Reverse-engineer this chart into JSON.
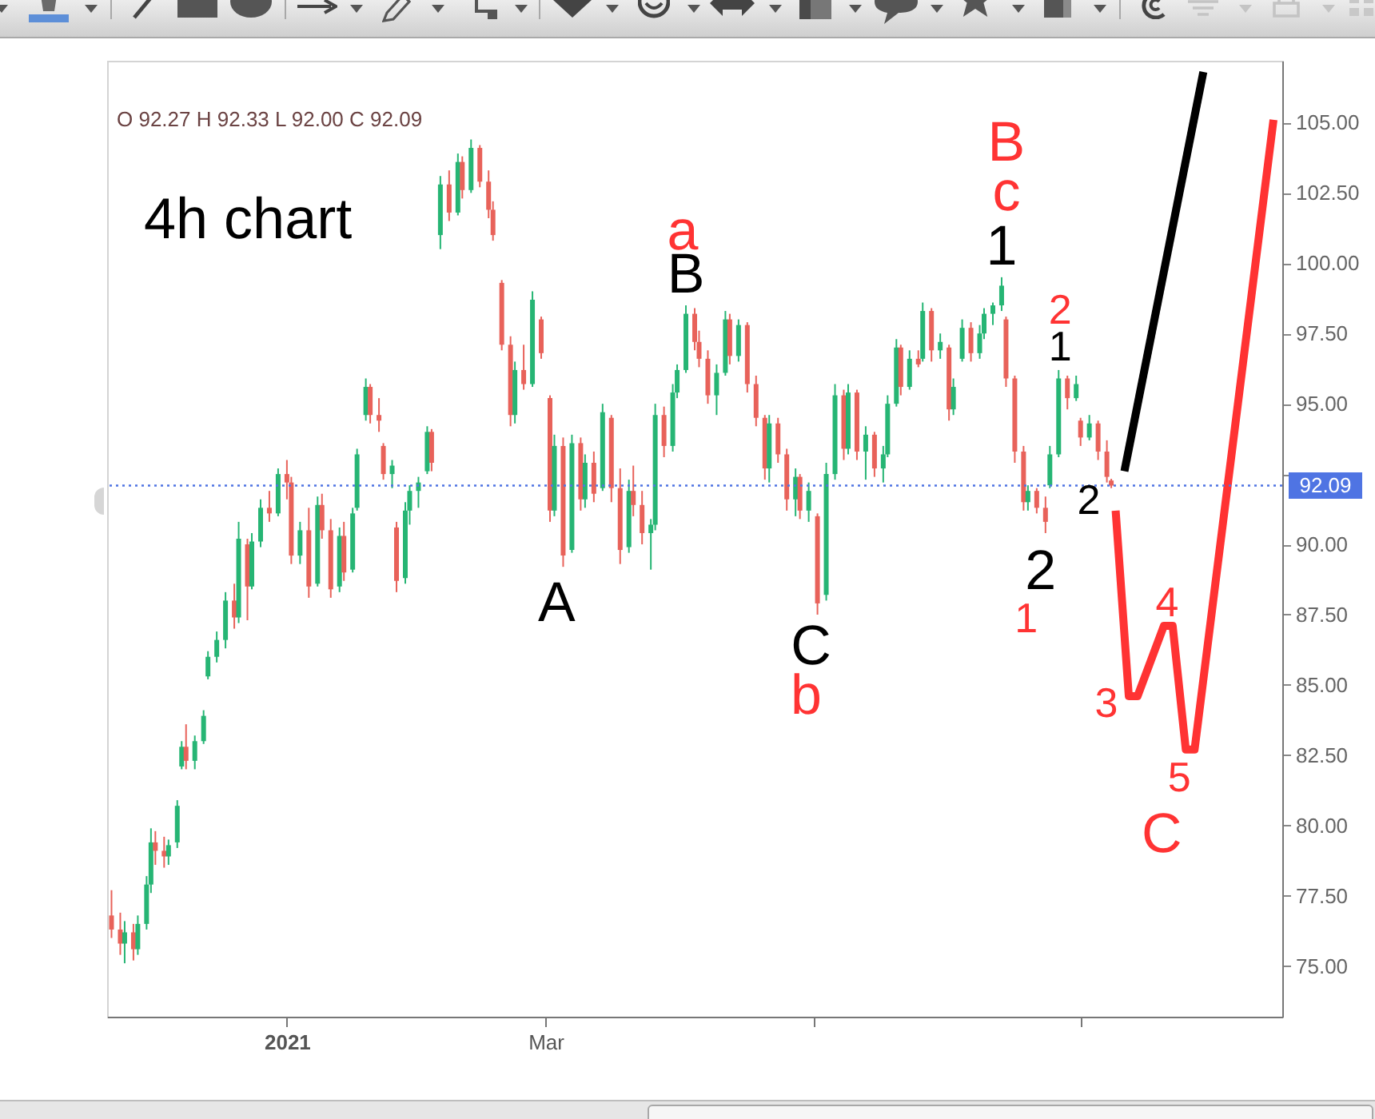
{
  "chart_data": {
    "type": "candlestick",
    "title": "4h chart",
    "subtitle": "O 92.27 H 92.33 L 92.00 C 92.09",
    "x": [
      "2020-11-22",
      "2020-11-24",
      "2020-11-25",
      "2020-11-27",
      "2020-11-28",
      "2020-11-30",
      "2020-12-01",
      "2020-12-02",
      "2020-12-04",
      "2020-12-05",
      "2020-12-07",
      "2020-12-08",
      "2020-12-09",
      "2020-12-11",
      "2020-12-13",
      "2020-12-14",
      "2020-12-16",
      "2020-12-18",
      "2020-12-20",
      "2020-12-21",
      "2020-12-23",
      "2020-12-24",
      "2020-12-26",
      "2020-12-28",
      "2020-12-30",
      "2021-01-01",
      "2021-01-02",
      "2021-01-04",
      "2021-01-06",
      "2021-01-08",
      "2021-01-09",
      "2021-01-11",
      "2021-01-13",
      "2021-01-14",
      "2021-01-16",
      "2021-01-17",
      "2021-01-19",
      "2021-01-20",
      "2021-01-22",
      "2021-01-23",
      "2021-01-25",
      "2021-01-26",
      "2021-01-28",
      "2021-01-29",
      "2021-01-31",
      "2021-02-02",
      "2021-02-03",
      "2021-02-05",
      "2021-02-07",
      "2021-02-09",
      "2021-02-10",
      "2021-02-12",
      "2021-02-14",
      "2021-02-16",
      "2021-02-17",
      "2021-02-19",
      "2021-02-21",
      "2021-02-22",
      "2021-02-24",
      "2021-02-26",
      "2021-02-28",
      "2021-03-02",
      "2021-03-03",
      "2021-03-05",
      "2021-03-07",
      "2021-03-09",
      "2021-03-10",
      "2021-03-12",
      "2021-03-14",
      "2021-03-16",
      "2021-03-18",
      "2021-03-20",
      "2021-03-21",
      "2021-03-23",
      "2021-03-25",
      "2021-03-26",
      "2021-03-28",
      "2021-03-30",
      "2021-03-31",
      "2021-04-02",
      "2021-04-04",
      "2021-04-05",
      "2021-04-07",
      "2021-04-09",
      "2021-04-11",
      "2021-04-12",
      "2021-04-14",
      "2021-04-16",
      "2021-04-18",
      "2021-04-20",
      "2021-04-21",
      "2021-04-23",
      "2021-04-25",
      "2021-04-27",
      "2021-04-28",
      "2021-04-30",
      "2021-05-02",
      "2021-05-04",
      "2021-05-06",
      "2021-05-08",
      "2021-05-09",
      "2021-05-11",
      "2021-05-13",
      "2021-05-15",
      "2021-05-17",
      "2021-05-18",
      "2021-05-20",
      "2021-05-21",
      "2021-05-23",
      "2021-05-25",
      "2021-05-26",
      "2021-05-28",
      "2021-05-30",
      "2021-06-01",
      "2021-06-02",
      "2021-06-04",
      "2021-06-06",
      "2021-06-08",
      "2021-06-09",
      "2021-06-11",
      "2021-06-13",
      "2021-06-14",
      "2021-06-16",
      "2021-06-18",
      "2021-06-19",
      "2021-06-21",
      "2021-06-23",
      "2021-06-24",
      "2021-06-26",
      "2021-06-28",
      "2021-06-30",
      "2021-07-01",
      "2021-07-03",
      "2021-07-05",
      "2021-07-07",
      "2021-07-08"
    ],
    "ohlc": [
      [
        76.8,
        77.7,
        76.0,
        76.3
      ],
      [
        76.3,
        76.9,
        75.4,
        75.8
      ],
      [
        75.8,
        76.6,
        75.1,
        76.2
      ],
      [
        76.2,
        76.5,
        75.2,
        75.6
      ],
      [
        75.6,
        76.8,
        75.4,
        76.5
      ],
      [
        76.5,
        78.2,
        76.3,
        77.9
      ],
      [
        77.9,
        79.9,
        77.6,
        79.4
      ],
      [
        79.4,
        79.8,
        78.6,
        79.1
      ],
      [
        79.1,
        79.6,
        78.5,
        78.9
      ],
      [
        78.9,
        79.5,
        78.6,
        79.3
      ],
      [
        79.4,
        80.9,
        79.2,
        80.7
      ],
      [
        82.1,
        83.0,
        82.0,
        82.8
      ],
      [
        82.8,
        83.6,
        82.0,
        82.3
      ],
      [
        82.3,
        83.2,
        82.0,
        83.0
      ],
      [
        83.0,
        84.1,
        82.9,
        83.9
      ],
      [
        85.3,
        86.2,
        85.2,
        86.0
      ],
      [
        86.0,
        86.9,
        85.8,
        86.6
      ],
      [
        86.6,
        88.3,
        86.3,
        88.0
      ],
      [
        88.0,
        88.6,
        87.0,
        87.4
      ],
      [
        87.4,
        90.8,
        87.2,
        90.2
      ],
      [
        90.0,
        90.2,
        87.3,
        88.5
      ],
      [
        88.5,
        90.4,
        88.4,
        90.1
      ],
      [
        90.1,
        91.6,
        89.9,
        91.3
      ],
      [
        91.3,
        91.9,
        90.8,
        91.1
      ],
      [
        91.1,
        92.7,
        91.0,
        92.5
      ],
      [
        92.5,
        93.0,
        91.6,
        92.2
      ],
      [
        92.2,
        92.4,
        89.3,
        89.6
      ],
      [
        89.6,
        90.8,
        89.3,
        90.5
      ],
      [
        90.5,
        91.3,
        88.1,
        88.5
      ],
      [
        88.6,
        91.7,
        88.5,
        91.4
      ],
      [
        91.4,
        91.8,
        90.2,
        90.5
      ],
      [
        90.5,
        90.9,
        88.1,
        88.4
      ],
      [
        88.5,
        90.6,
        88.3,
        90.3
      ],
      [
        90.3,
        90.8,
        88.7,
        89.0
      ],
      [
        89.1,
        91.3,
        89.0,
        91.1
      ],
      [
        91.3,
        93.4,
        91.2,
        93.2
      ],
      [
        94.6,
        95.9,
        94.4,
        95.6
      ],
      [
        95.6,
        95.7,
        94.3,
        94.6
      ],
      [
        94.6,
        95.2,
        94.0,
        94.4
      ],
      [
        93.5,
        93.6,
        92.3,
        92.5
      ],
      [
        92.5,
        93.0,
        92.0,
        92.8
      ],
      [
        90.6,
        90.8,
        88.3,
        88.7
      ],
      [
        88.8,
        91.5,
        88.6,
        91.2
      ],
      [
        91.2,
        92.1,
        90.7,
        91.9
      ],
      [
        91.9,
        92.4,
        91.3,
        92.2
      ],
      [
        92.6,
        94.2,
        92.5,
        94.0
      ],
      [
        94.0,
        94.1,
        92.6,
        92.9
      ],
      [
        101.0,
        103.1,
        100.5,
        102.8
      ],
      [
        102.8,
        103.3,
        101.5,
        101.8
      ],
      [
        101.8,
        103.9,
        101.7,
        103.6
      ],
      [
        103.6,
        103.8,
        102.3,
        102.6
      ],
      [
        102.6,
        104.4,
        102.5,
        104.1
      ],
      [
        104.1,
        104.2,
        102.7,
        102.9
      ],
      [
        102.9,
        103.3,
        101.6,
        101.9
      ],
      [
        101.9,
        102.2,
        100.8,
        101.0
      ],
      [
        99.3,
        99.4,
        96.9,
        97.1
      ],
      [
        97.1,
        97.4,
        94.2,
        94.6
      ],
      [
        94.6,
        96.5,
        94.3,
        96.2
      ],
      [
        96.2,
        97.1,
        95.5,
        95.7
      ],
      [
        95.7,
        99.0,
        95.6,
        98.7
      ],
      [
        98.0,
        98.1,
        96.6,
        96.8
      ],
      [
        95.2,
        95.3,
        90.8,
        91.2
      ],
      [
        91.2,
        93.9,
        91.0,
        93.5
      ],
      [
        93.5,
        93.8,
        89.2,
        89.6
      ],
      [
        89.8,
        93.9,
        89.7,
        93.6
      ],
      [
        93.6,
        93.8,
        91.2,
        91.6
      ],
      [
        91.6,
        93.2,
        91.3,
        92.9
      ],
      [
        92.9,
        93.3,
        91.5,
        91.8
      ],
      [
        92.0,
        95.0,
        91.9,
        94.7
      ],
      [
        94.5,
        94.6,
        91.5,
        92.0
      ],
      [
        92.0,
        92.7,
        89.3,
        89.8
      ],
      [
        89.9,
        92.3,
        89.7,
        91.9
      ],
      [
        91.9,
        92.8,
        91.0,
        91.4
      ],
      [
        91.4,
        91.9,
        90.0,
        90.4
      ],
      [
        90.4,
        90.9,
        89.1,
        90.7
      ],
      [
        90.7,
        95.0,
        90.5,
        94.6
      ],
      [
        94.6,
        94.9,
        93.1,
        93.5
      ],
      [
        93.5,
        95.7,
        93.3,
        95.4
      ],
      [
        95.4,
        96.4,
        95.2,
        96.2
      ],
      [
        96.2,
        98.5,
        96.1,
        98.2
      ],
      [
        98.2,
        98.4,
        96.9,
        97.2
      ],
      [
        97.2,
        97.6,
        96.3,
        96.6
      ],
      [
        96.6,
        96.9,
        95.0,
        95.3
      ],
      [
        95.3,
        96.4,
        94.6,
        96.1
      ],
      [
        96.1,
        98.3,
        96.0,
        98.0
      ],
      [
        98.0,
        98.2,
        96.4,
        96.7
      ],
      [
        96.7,
        98.0,
        96.5,
        97.8
      ],
      [
        97.8,
        97.9,
        95.4,
        95.7
      ],
      [
        95.7,
        96.0,
        94.2,
        94.5
      ],
      [
        94.5,
        94.6,
        92.3,
        92.7
      ],
      [
        92.7,
        94.6,
        92.2,
        94.3
      ],
      [
        94.3,
        94.5,
        92.9,
        93.2
      ],
      [
        93.2,
        93.4,
        91.2,
        91.6
      ],
      [
        91.6,
        92.7,
        91.0,
        92.4
      ],
      [
        92.4,
        92.5,
        90.9,
        91.2
      ],
      [
        91.2,
        92.2,
        90.8,
        91.9
      ],
      [
        91.0,
        91.1,
        87.5,
        87.9
      ],
      [
        88.2,
        92.9,
        88.0,
        92.5
      ],
      [
        92.5,
        95.7,
        92.3,
        95.3
      ],
      [
        95.3,
        95.5,
        93.0,
        93.4
      ],
      [
        93.4,
        95.7,
        93.2,
        95.4
      ],
      [
        95.4,
        95.5,
        93.0,
        93.3
      ],
      [
        93.3,
        94.2,
        92.3,
        93.9
      ],
      [
        93.9,
        94.0,
        92.4,
        92.7
      ],
      [
        92.7,
        93.5,
        92.2,
        93.2
      ],
      [
        93.2,
        95.3,
        93.1,
        95.0
      ],
      [
        95.0,
        97.3,
        94.9,
        97.0
      ],
      [
        97.0,
        97.1,
        95.3,
        95.6
      ],
      [
        95.6,
        96.9,
        95.5,
        96.6
      ],
      [
        96.6,
        96.9,
        96.3,
        96.4
      ],
      [
        96.6,
        98.6,
        96.5,
        98.3
      ],
      [
        98.3,
        98.4,
        96.5,
        96.9
      ],
      [
        96.9,
        97.5,
        96.6,
        97.2
      ],
      [
        97.0,
        97.1,
        94.4,
        94.8
      ],
      [
        94.8,
        95.9,
        94.6,
        95.6
      ],
      [
        96.6,
        98.0,
        96.5,
        97.7
      ],
      [
        97.7,
        97.9,
        96.5,
        96.8
      ],
      [
        96.8,
        97.8,
        96.6,
        97.5
      ],
      [
        97.5,
        98.4,
        97.3,
        98.2
      ],
      [
        98.2,
        98.6,
        97.8,
        98.5
      ],
      [
        98.5,
        99.5,
        98.3,
        99.2
      ],
      [
        98.0,
        98.1,
        95.6,
        95.9
      ],
      [
        95.9,
        96.0,
        92.9,
        93.3
      ],
      [
        93.3,
        93.5,
        91.2,
        91.5
      ],
      [
        91.5,
        92.1,
        91.2,
        91.9
      ],
      [
        91.9,
        92.0,
        91.1,
        91.3
      ],
      [
        91.3,
        91.7,
        90.4,
        90.8
      ],
      [
        92.1,
        93.5,
        92.0,
        93.2
      ],
      [
        93.2,
        96.2,
        93.1,
        95.9
      ],
      [
        95.9,
        96.0,
        94.8,
        95.2
      ],
      [
        95.2,
        96.0,
        95.1,
        95.7
      ],
      [
        94.4,
        94.5,
        93.5,
        93.8
      ],
      [
        93.8,
        94.6,
        93.7,
        94.3
      ],
      [
        94.3,
        94.4,
        93.0,
        93.3
      ],
      [
        93.3,
        93.7,
        92.2,
        92.4
      ],
      [
        92.27,
        92.33,
        92.0,
        92.09
      ]
    ],
    "colors": [
      "#e8625a",
      "#e8625a",
      "#26b574",
      "#e8625a",
      "#26b574",
      "#26b574",
      "#26b574",
      "#e8625a",
      "#e8625a",
      "#26b574",
      "#26b574",
      "#26b574",
      "#e8625a",
      "#26b574",
      "#26b574",
      "#26b574",
      "#26b574",
      "#26b574",
      "#e8625a",
      "#26b574",
      "#e8625a",
      "#26b574",
      "#26b574",
      "#e8625a",
      "#26b574",
      "#e8625a",
      "#e8625a",
      "#26b574",
      "#e8625a",
      "#26b574",
      "#e8625a",
      "#e8625a",
      "#26b574",
      "#e8625a",
      "#26b574",
      "#26b574",
      "#26b574",
      "#e8625a",
      "#e8625a",
      "#e8625a",
      "#26b574",
      "#e8625a",
      "#26b574",
      "#26b574",
      "#26b574",
      "#26b574",
      "#e8625a",
      "#26b574",
      "#e8625a",
      "#26b574",
      "#e8625a",
      "#26b574",
      "#e8625a",
      "#e8625a",
      "#e8625a",
      "#e8625a",
      "#e8625a",
      "#26b574",
      "#e8625a",
      "#26b574",
      "#e8625a",
      "#e8625a",
      "#26b574",
      "#e8625a",
      "#26b574",
      "#e8625a",
      "#26b574",
      "#e8625a",
      "#26b574",
      "#e8625a",
      "#e8625a",
      "#26b574",
      "#e8625a",
      "#e8625a",
      "#26b574",
      "#26b574",
      "#e8625a",
      "#26b574",
      "#26b574",
      "#26b574",
      "#e8625a",
      "#e8625a",
      "#e8625a",
      "#26b574",
      "#26b574",
      "#e8625a",
      "#26b574",
      "#e8625a",
      "#e8625a",
      "#e8625a",
      "#26b574",
      "#e8625a",
      "#e8625a",
      "#26b574",
      "#e8625a",
      "#26b574",
      "#e8625a",
      "#26b574",
      "#26b574",
      "#e8625a",
      "#26b574",
      "#e8625a",
      "#26b574",
      "#e8625a",
      "#26b574",
      "#26b574",
      "#26b574",
      "#e8625a",
      "#26b574",
      "#e8625a",
      "#26b574",
      "#e8625a",
      "#26b574",
      "#e8625a",
      "#26b574",
      "#26b574",
      "#e8625a",
      "#26b574",
      "#26b574",
      "#26b574",
      "#26b574",
      "#e8625a",
      "#e8625a",
      "#e8625a",
      "#26b574",
      "#e8625a",
      "#e8625a",
      "#26b574",
      "#26b574",
      "#e8625a",
      "#26b574",
      "#e8625a",
      "#26b574",
      "#e8625a",
      "#e8625a",
      "#e8625a"
    ],
    "series": [
      {
        "type": "line",
        "color": "#000000",
        "x": [
          "2021-07-11",
          "2021-07-29"
        ],
        "values": [
          92.6,
          106.8
        ]
      },
      {
        "type": "line",
        "color": "#ff3333",
        "x": [
          "2021-07-09",
          "2021-07-12",
          "2021-07-14",
          "2021-07-20",
          "2021-07-22",
          "2021-07-25",
          "2021-07-27",
          "2021-08-14"
        ],
        "values": [
          91.2,
          84.6,
          84.6,
          87.1,
          87.1,
          82.7,
          82.7,
          105.1
        ]
      }
    ],
    "xlim": [
      "2020-11-21",
      "2021-08-16"
    ],
    "xticks": [
      {
        "value": "2021-01-01",
        "label": "2021"
      },
      {
        "value": "2021-03-01",
        "label": "Mar"
      },
      {
        "value": "2021-05-01",
        "label": null
      },
      {
        "value": "2021-07-01",
        "label": null
      }
    ],
    "ylim": [
      73.2,
      107.2
    ],
    "yticks": [
      {
        "value": 75,
        "label": "75.00"
      },
      {
        "value": 77.5,
        "label": "77.50"
      },
      {
        "value": 80,
        "label": "80.00"
      },
      {
        "value": 82.5,
        "label": "82.50"
      },
      {
        "value": 85,
        "label": "85.00"
      },
      {
        "value": 87.5,
        "label": "87.50"
      },
      {
        "value": 90,
        "label": "90.00"
      },
      {
        "value": 92.5,
        "label": null
      },
      {
        "value": 95,
        "label": "95.00"
      },
      {
        "value": 97.5,
        "label": "97.50"
      },
      {
        "value": 100,
        "label": "100.00"
      },
      {
        "value": 102.5,
        "label": "102.50"
      },
      {
        "value": 105,
        "label": "105.00"
      }
    ],
    "ref_lines": [
      {
        "axis": "y",
        "value": 92.09,
        "label": "92.09",
        "color": "#4f74e3",
        "line_style": "dotted"
      }
    ],
    "annotations": [
      {
        "text": "a",
        "x": "2021-04-02",
        "y": 98.5
      },
      {
        "text": "B",
        "x": "2021-04-02",
        "y": 98.5
      },
      {
        "text": "A",
        "x": "2021-03-05",
        "y": 89.2
      },
      {
        "text": "C",
        "x": "2021-05-02",
        "y": 87.5
      },
      {
        "text": "b",
        "x": "2021-05-02",
        "y": 87.5
      },
      {
        "text": "B",
        "x": "2021-06-13",
        "y": 99.5
      },
      {
        "text": "c",
        "x": "2021-06-13",
        "y": 99.5
      },
      {
        "text": "1",
        "x": "2021-06-13",
        "y": 99.5
      },
      {
        "text": "2",
        "x": "2021-06-23",
        "y": 90.4
      },
      {
        "text": "1",
        "x": "2021-06-23",
        "y": 90.4
      },
      {
        "text": "2",
        "x": "2021-06-26",
        "y": 96.2
      },
      {
        "text": "1",
        "x": "2021-06-26",
        "y": 96.2
      },
      {
        "text": "2",
        "x": "2021-07-08",
        "y": 92.0
      },
      {
        "text": "3",
        "x": "2021-07-12",
        "y": 84.6
      },
      {
        "text": "4",
        "x": "2021-07-20",
        "y": 87.1
      },
      {
        "text": "5",
        "x": "2021-07-25",
        "y": 82.7
      },
      {
        "text": "C",
        "x": "2021-07-25",
        "y": 82.7
      }
    ]
  }
}
